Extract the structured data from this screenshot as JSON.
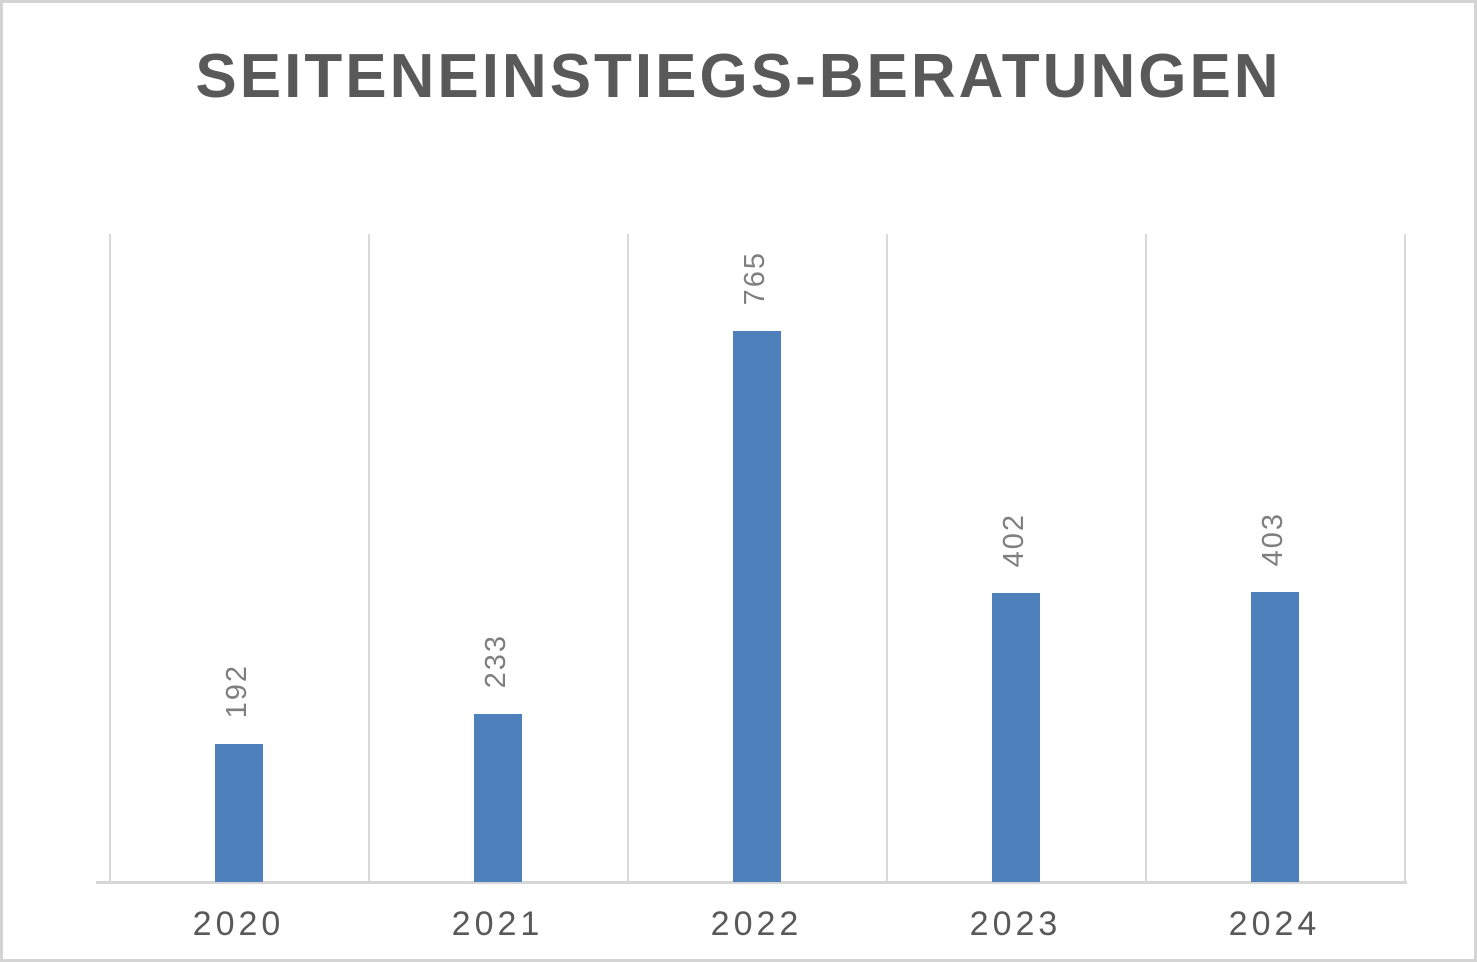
{
  "chart_data": {
    "type": "bar",
    "title": "SEITENEINSTIEGS-BERATUNGEN",
    "categories": [
      "2020",
      "2021",
      "2022",
      "2023",
      "2024"
    ],
    "values": [
      192,
      233,
      765,
      402,
      403
    ],
    "xlabel": "",
    "ylabel": "",
    "ylim": [
      0,
      900
    ],
    "grid": "vertical category separators only, no horizontal gridlines",
    "legend_position": "none",
    "data_labels": "outside end, rotated vertical reading bottom-to-top",
    "colors": {
      "bar": "#4E80BC",
      "title": "#595959",
      "data_label": "#7F7F7F",
      "axis_label": "#595959",
      "gridline": "#D9D9D9",
      "axis_line": "#D6D6D6",
      "frame_border": "#D4D4D4",
      "background": "#FFFFFF"
    }
  }
}
